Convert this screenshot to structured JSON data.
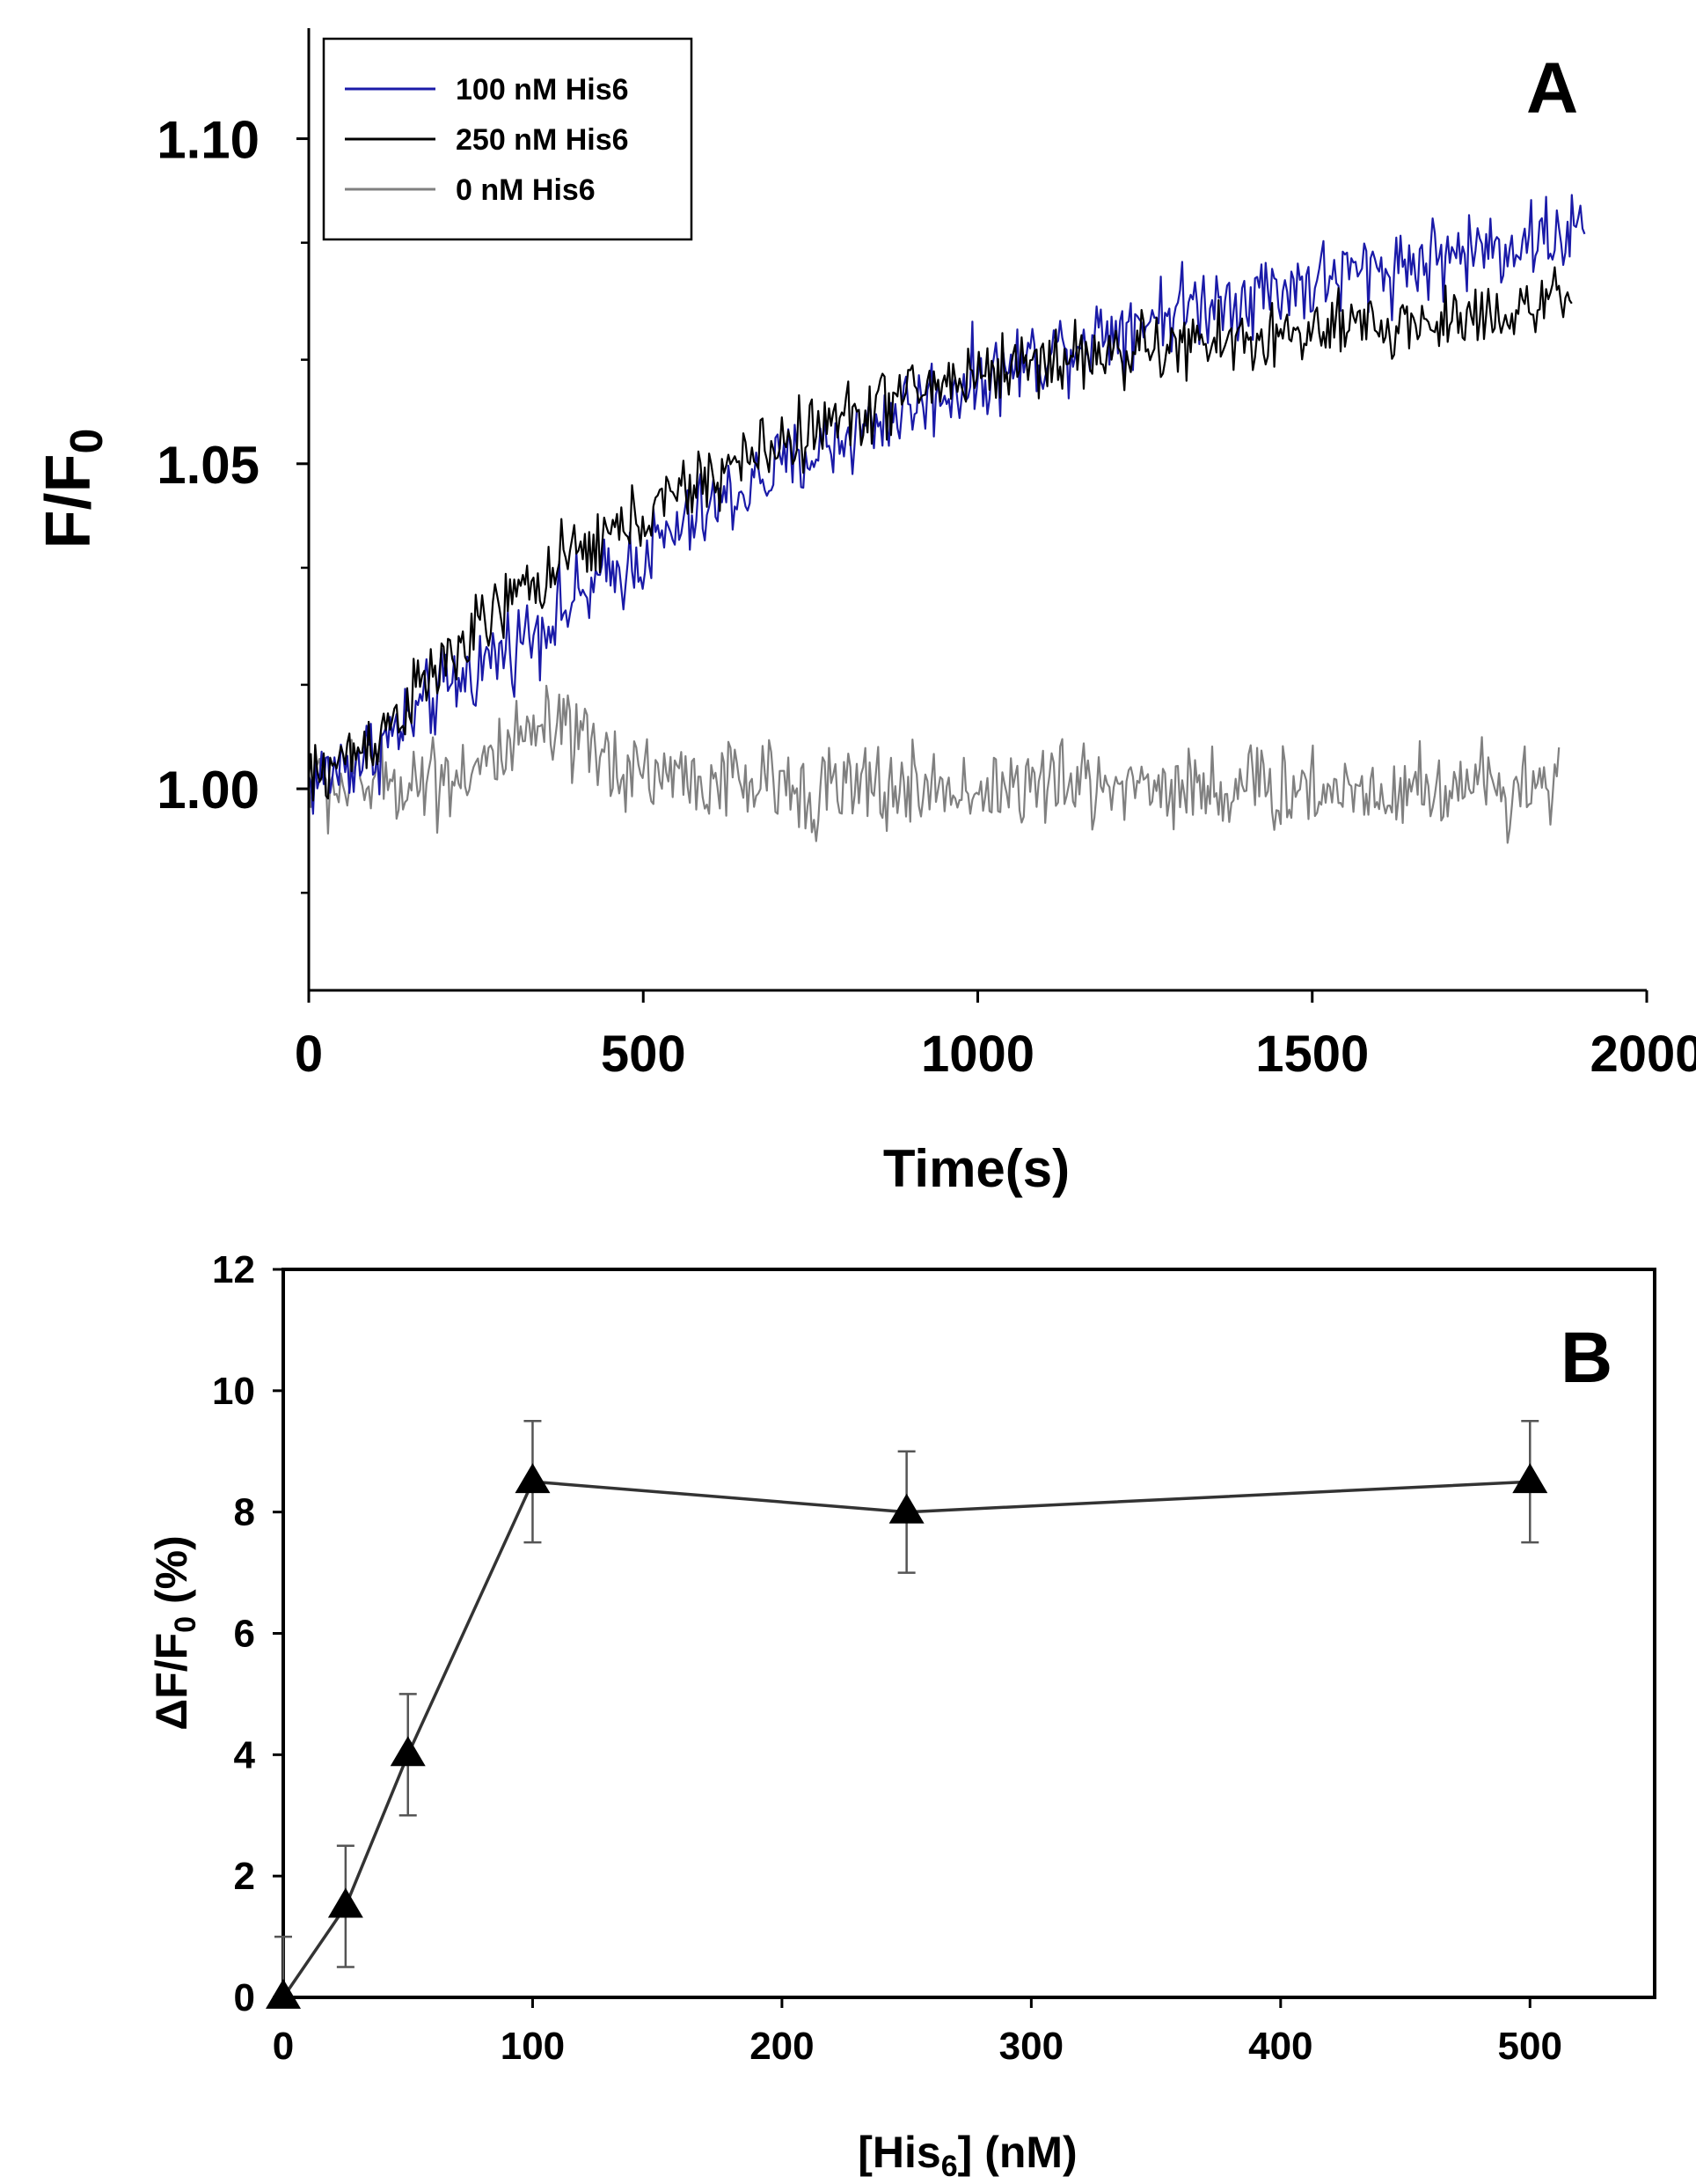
{
  "colors": {
    "series_100": "#1a1aa8",
    "series_250": "#000000",
    "series_0": "#808080",
    "axis": "#000000",
    "panel_b_line": "#333333",
    "error_bar": "#555555"
  },
  "chart_data": [
    {
      "panel": "A",
      "type": "line",
      "title": "",
      "panel_label": "A",
      "xlabel": "Time(s)",
      "ylabel_main": "F/F",
      "ylabel_sub": "0",
      "xlim": [
        0,
        2000
      ],
      "ylim": [
        0.969,
        1.117
      ],
      "x_ticks": [
        0,
        500,
        1000,
        1500,
        2000
      ],
      "x_tick_labels": [
        "0",
        "500",
        "1000",
        "1500",
        "2000"
      ],
      "y_ticks": [
        1.0,
        1.05,
        1.1
      ],
      "y_tick_labels": [
        "1.00",
        "1.05",
        "1.10"
      ],
      "y_minor_ticks": [
        0.984,
        1.016,
        1.034,
        1.066,
        1.084
      ],
      "grid": false,
      "legend_position": "top-left",
      "series": [
        {
          "name": "100 nM His6",
          "color_key": "series_100",
          "x_max": 1910,
          "noise": 0.0042,
          "values_x": [
            0,
            100,
            200,
            300,
            400,
            500,
            600,
            700,
            800,
            900,
            1000,
            1100,
            1200,
            1300,
            1400,
            1500,
            1600,
            1700,
            1800,
            1910
          ],
          "values_y": [
            1.001,
            1.006,
            1.015,
            1.022,
            1.029,
            1.036,
            1.043,
            1.049,
            1.054,
            1.059,
            1.063,
            1.067,
            1.071,
            1.074,
            1.076,
            1.078,
            1.08,
            1.082,
            1.084,
            1.086
          ]
        },
        {
          "name": "250 nM His6",
          "color_key": "series_250",
          "x_max": 1890,
          "noise": 0.0036,
          "values_x": [
            0,
            100,
            200,
            300,
            400,
            500,
            600,
            700,
            800,
            900,
            1000,
            1100,
            1200,
            1300,
            1400,
            1500,
            1600,
            1700,
            1800,
            1890
          ],
          "values_y": [
            1.001,
            1.008,
            1.019,
            1.029,
            1.036,
            1.042,
            1.048,
            1.053,
            1.057,
            1.061,
            1.064,
            1.066,
            1.067,
            1.068,
            1.069,
            1.07,
            1.071,
            1.072,
            1.074,
            1.075
          ]
        },
        {
          "name": "0 nM His6",
          "color_key": "series_0",
          "x_max": 1870,
          "noise": 0.0045,
          "values_x": [
            0,
            100,
            200,
            300,
            350,
            400,
            450,
            500,
            600,
            800,
            1000,
            1200,
            1400,
            1600,
            1870
          ],
          "values_y": [
            1.0,
            1.001,
            1.002,
            1.005,
            1.009,
            1.007,
            1.004,
            1.003,
            1.001,
            1.0,
            1.0,
            1.001,
            1.0,
            1.0,
            1.001
          ]
        }
      ]
    },
    {
      "panel": "B",
      "type": "line",
      "title": "",
      "panel_label": "B",
      "xlabel_main": "[His",
      "xlabel_sub": "6",
      "xlabel_tail": "] (nM)",
      "ylabel_main": "ΔF/F",
      "ylabel_sub": "0",
      "ylabel_tail": " (%)",
      "xlim": [
        0,
        550
      ],
      "ylim": [
        0,
        12
      ],
      "x_ticks": [
        0,
        100,
        200,
        300,
        400,
        500
      ],
      "x_tick_labels": [
        "0",
        "100",
        "200",
        "300",
        "400",
        "500"
      ],
      "y_ticks": [
        0,
        2,
        4,
        6,
        8,
        10,
        12
      ],
      "y_tick_labels": [
        "0",
        "2",
        "4",
        "6",
        "8",
        "10",
        "12"
      ],
      "grid": false,
      "marker": "triangle",
      "series": [
        {
          "name": "ΔF/F0",
          "x": [
            0,
            25,
            50,
            100,
            250,
            500
          ],
          "y": [
            0,
            1.5,
            4.0,
            8.5,
            8.0,
            8.5
          ],
          "error": [
            1.0,
            1.0,
            1.0,
            1.0,
            1.0,
            1.0
          ]
        }
      ]
    }
  ]
}
